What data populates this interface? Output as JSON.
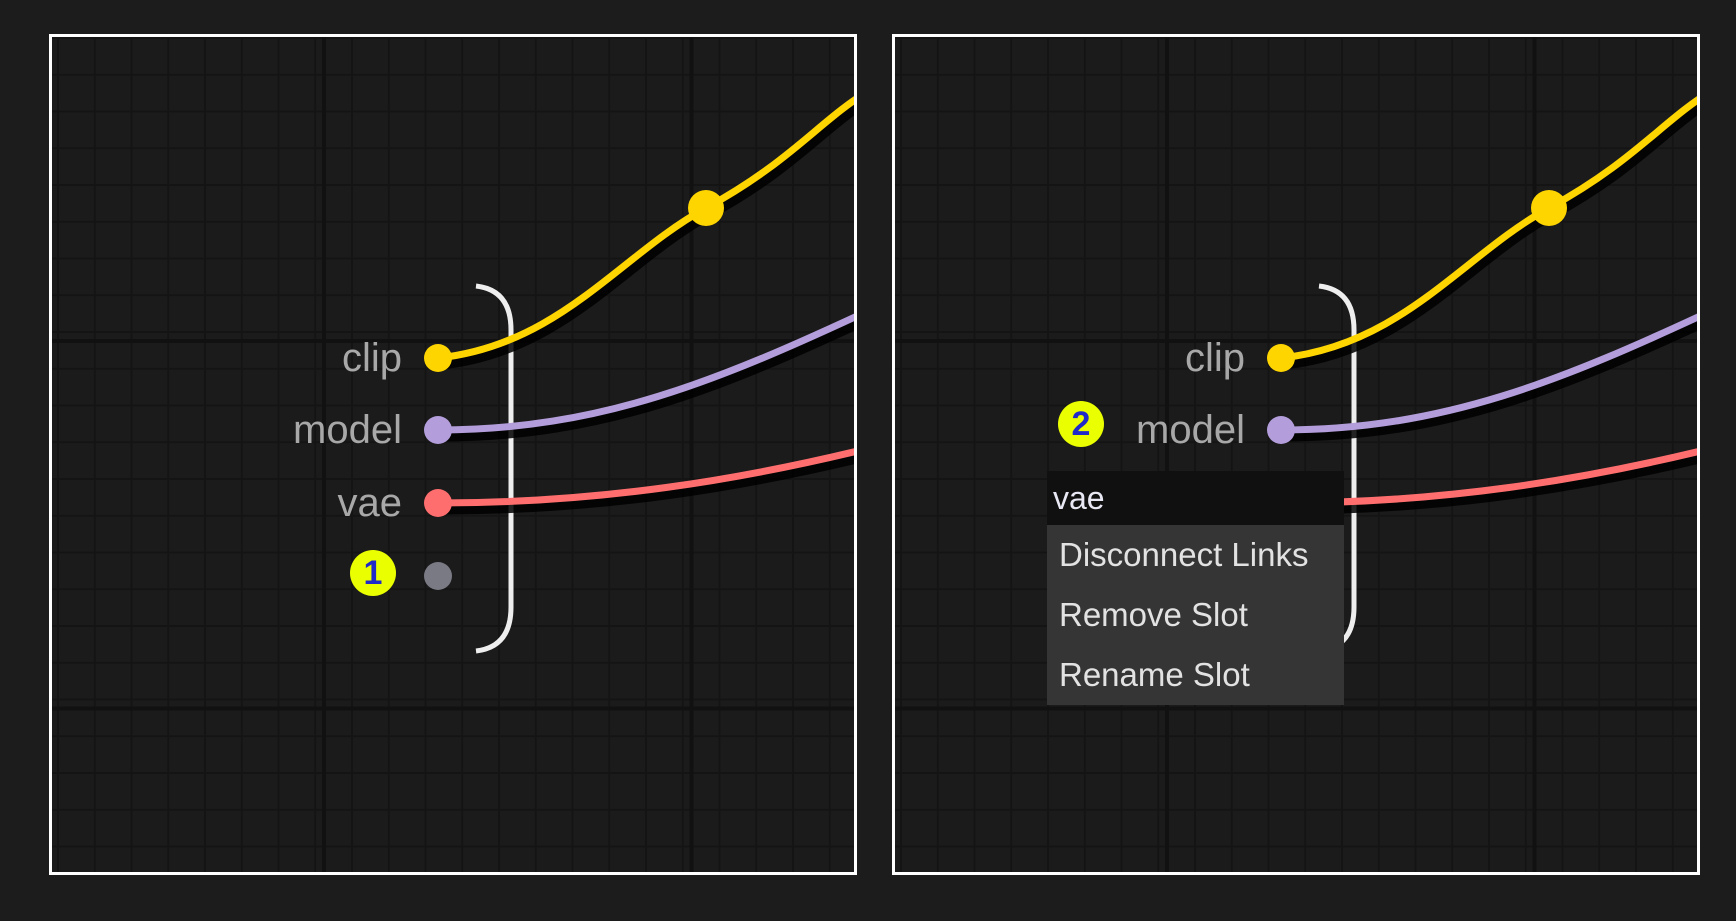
{
  "colors": {
    "clip": "#ffd500",
    "model": "#b39ddb",
    "vae": "#ff6e6e",
    "empty_slot": "#7a7a85",
    "badge": "#eaff00"
  },
  "left_panel": {
    "slots": [
      {
        "label": "clip"
      },
      {
        "label": "model"
      },
      {
        "label": "vae"
      }
    ],
    "badge": "1"
  },
  "right_panel": {
    "slots": [
      {
        "label": "clip"
      },
      {
        "label": "model"
      }
    ],
    "badge": "2",
    "context_menu": {
      "title": "vae",
      "items": [
        {
          "label": "Disconnect Links"
        },
        {
          "label": "Remove Slot"
        },
        {
          "label": "Rename Slot"
        }
      ]
    }
  }
}
